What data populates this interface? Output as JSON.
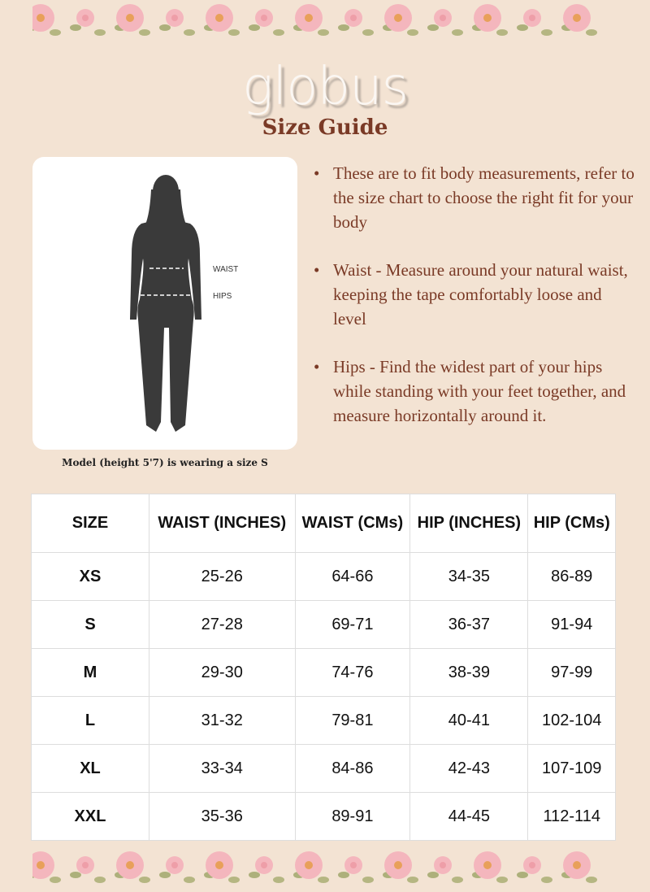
{
  "brand": "globus",
  "title": "Size Guide",
  "figure": {
    "waist_label": "WAIST",
    "hips_label": "HIPS"
  },
  "caption": "Model (height 5'7) is wearing a size S",
  "bullets": [
    "These are to fit body measurements, refer to the size chart to choose the right fit for your body",
    "Waist - Measure around your natural waist, keeping the tape comfortably loose and level",
    "Hips - Find the widest part of your hips while standing with your feet together, and measure horizontally around it."
  ],
  "table": {
    "headers": [
      "SIZE",
      "WAIST (INCHES)",
      "WAIST (CMs)",
      "HIP (INCHES)",
      "HIP (CMs)"
    ],
    "rows": [
      [
        "XS",
        "25-26",
        "64-66",
        "34-35",
        "86-89"
      ],
      [
        "S",
        "27-28",
        "69-71",
        "36-37",
        "91-94"
      ],
      [
        "M",
        "29-30",
        "74-76",
        "38-39",
        "97-99"
      ],
      [
        "L",
        "31-32",
        "79-81",
        "40-41",
        "102-104"
      ],
      [
        "XL",
        "33-34",
        "84-86",
        "42-43",
        "107-109"
      ],
      [
        "XXL",
        "35-36",
        "89-91",
        "44-45",
        "112-114"
      ]
    ]
  },
  "colors": {
    "background": "#f3e3d3",
    "accent": "#7a3a26"
  }
}
